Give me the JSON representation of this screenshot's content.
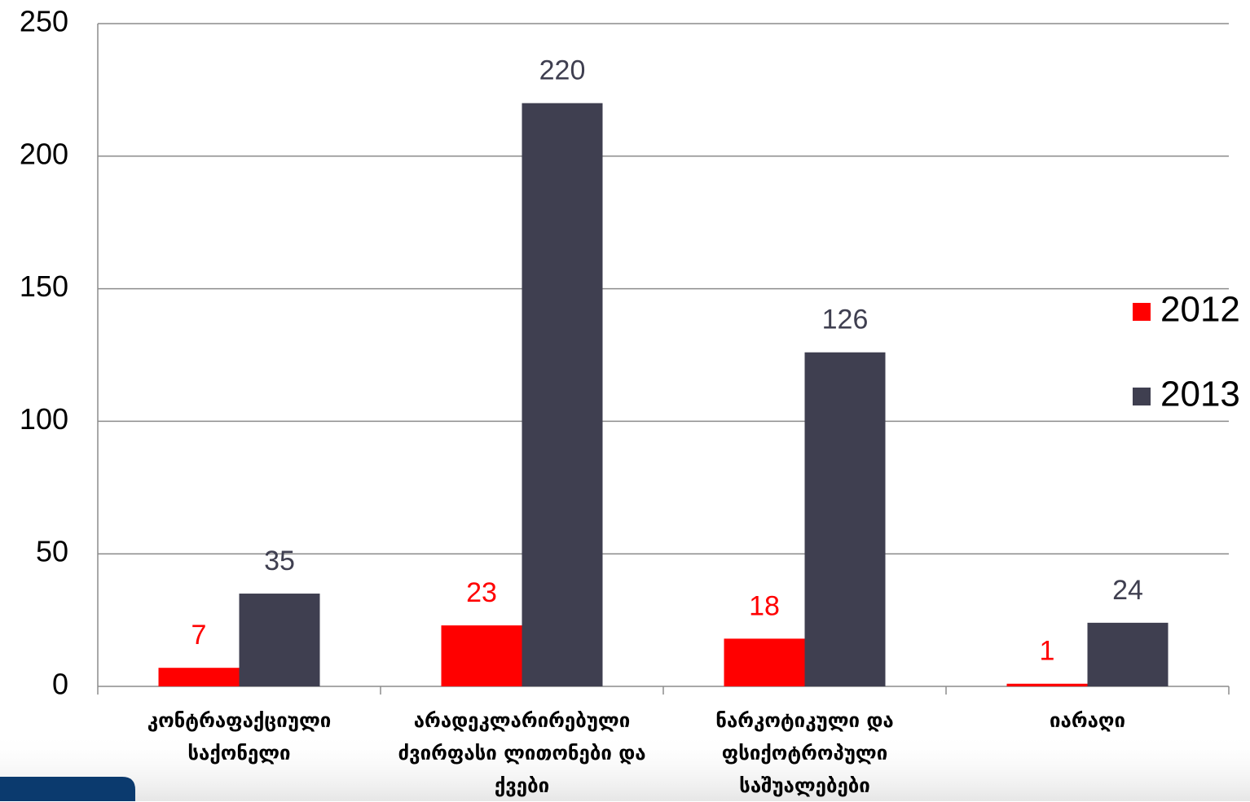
{
  "chart_data": {
    "type": "bar",
    "categories": [
      "კონტრაფაქციული საქონელი",
      "არადეკლარირებული ძვირფასი ლითონები და ქვები",
      "ნარკოტიკული და ფსიქოტროპული საშუალებები",
      "იარაღი"
    ],
    "series": [
      {
        "name": "2012",
        "color": "#ff0000",
        "values": [
          7,
          23,
          18,
          1
        ]
      },
      {
        "name": "2013",
        "color": "#3f3f50",
        "values": [
          35,
          220,
          126,
          24
        ]
      }
    ],
    "ylim": [
      0,
      250
    ],
    "yticks": [
      0,
      50,
      100,
      150,
      200,
      250
    ],
    "grid": true,
    "legend": "right"
  }
}
